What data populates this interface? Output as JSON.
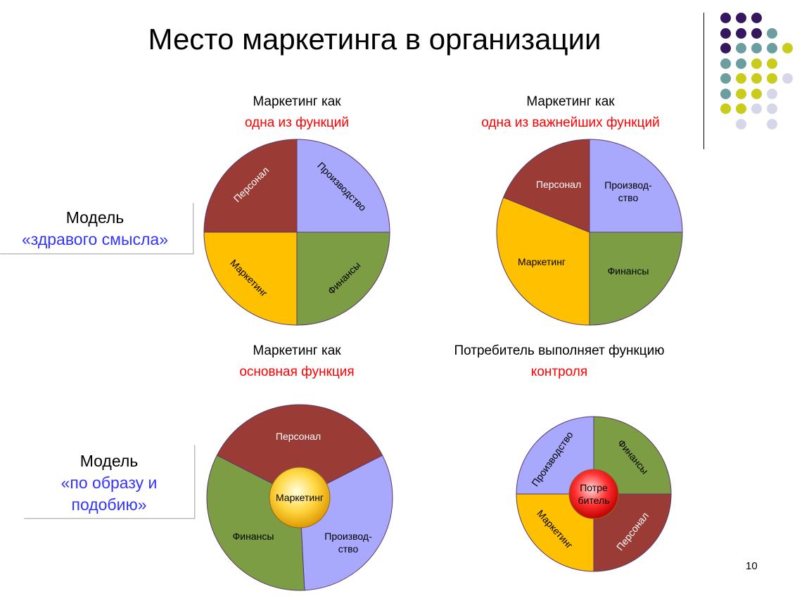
{
  "title": "Место маркетинга в организации",
  "page_number": "10",
  "models": [
    {
      "line1": "Модель",
      "line2": "«здравого смысла»"
    },
    {
      "line1": "Модель",
      "line2": "«по образу и подобию»"
    }
  ],
  "diagrams": [
    {
      "caption_line1": "Маркетинг как",
      "caption_line2": "одна из функций",
      "labels": {
        "personnel": "Персонал",
        "production": "Производство",
        "marketing": "Маркетинг",
        "finance": "Финансы"
      }
    },
    {
      "caption_line1": "Маркетинг как",
      "caption_line2": "одна из важнейших функций",
      "labels": {
        "personnel": "Персонал",
        "production": "Производ-\nство",
        "marketing": "Маркетинг",
        "finance": "Финансы"
      }
    },
    {
      "caption_line1": "Маркетинг как",
      "caption_line2": "основная функция",
      "labels": {
        "personnel": "Персонал",
        "production": "Производ-\nство",
        "marketing": "Маркетинг",
        "finance": "Финансы"
      }
    },
    {
      "caption_line1": "Потребитель выполняет функцию",
      "caption_line2": "контроля",
      "labels": {
        "personnel": "Персонал",
        "production": "Производство",
        "marketing": "Маркетинг",
        "finance": "Финансы",
        "consumer": "Потре\nбитель"
      }
    }
  ],
  "colors": {
    "personnel": "#9b3b35",
    "production": "#a8a8fc",
    "marketing": "#ffc000",
    "finance": "#7c9d44",
    "red_text": "#ff0000",
    "blue_text": "#3333ff",
    "dot_purple": "#35175f",
    "dot_teal": "#6c9ea0",
    "dot_lime": "#c9cc1a",
    "dot_lavender": "#d6d6ea"
  },
  "decoration_dots": [
    [
      "purple",
      "purple",
      "purple",
      "",
      ""
    ],
    [
      "purple",
      "purple",
      "purple",
      "teal",
      ""
    ],
    [
      "purple",
      "teal",
      "teal",
      "teal",
      "lime"
    ],
    [
      "teal",
      "teal",
      "lime",
      "lime",
      ""
    ],
    [
      "teal",
      "lime",
      "lime",
      "lime",
      "lavender"
    ],
    [
      "teal",
      "lime",
      "lime",
      "lavender",
      ""
    ],
    [
      "lime",
      "lime",
      "lavender",
      "lavender",
      ""
    ],
    [
      "",
      "lavender",
      "",
      "lavender",
      ""
    ]
  ]
}
